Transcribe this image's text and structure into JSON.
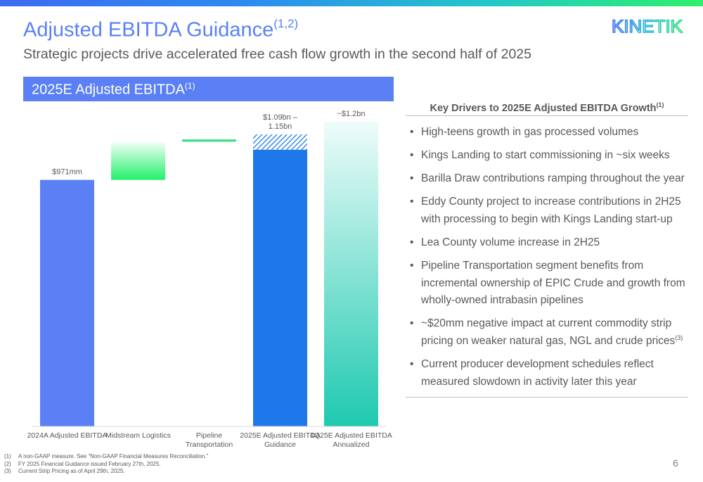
{
  "header": {
    "title": "Adjusted EBITDA Guidance",
    "title_sup": "(1,2)",
    "subtitle": "Strategic projects drive accelerated free cash flow growth in the second half of 2025",
    "logo_text": "KINETIK"
  },
  "section": {
    "label": "2025E Adjusted EBITDA",
    "label_sup": "(1)"
  },
  "chart_data": {
    "type": "bar",
    "subtype": "waterfall",
    "unit": "$mm",
    "ylim": [
      0,
      1200
    ],
    "grid": false,
    "legend": "none",
    "categories": [
      "2024A Adjusted EBITDA",
      "Midstream Logistics",
      "Pipeline Transportation",
      "2025E Adjusted EBITDA Guidance",
      "4Q25E Adjusted EBITDA Annualized"
    ],
    "bars": [
      {
        "category": "2024A Adjusted EBITDA",
        "kind": "total",
        "base": 0,
        "value": 971,
        "label": "$971mm",
        "color": "#5b80f5"
      },
      {
        "category": "Midstream Logistics",
        "kind": "increment",
        "base": 971,
        "value": 1120,
        "label": "",
        "color_top": "#f2fff7",
        "color_bottom": "#22f06a"
      },
      {
        "category": "Pipeline Transportation",
        "kind": "increment",
        "base": 1120,
        "value": 1130,
        "label": "",
        "color": "#2ee07a"
      },
      {
        "category": "2025E Adjusted EBITDA Guidance",
        "kind": "range",
        "base": 0,
        "value": 1090,
        "high": 1150,
        "label": "$1.09bn – 1.15bn",
        "color": "#1e78ea"
      },
      {
        "category": "4Q25E Adjusted EBITDA Annualized",
        "kind": "total",
        "base": 0,
        "value": 1200,
        "label": "~$1.2bn",
        "color_top": "#eefcfa",
        "color_bottom": "#1ec9b0"
      }
    ]
  },
  "drivers": {
    "title": "Key Drivers to 2025E Adjusted EBITDA Growth",
    "title_sup": "(1)",
    "items": [
      {
        "text": "High-teens growth in gas processed volumes",
        "sup": ""
      },
      {
        "text": "Kings Landing to start commissioning in ~six weeks",
        "sup": ""
      },
      {
        "text": "Barilla Draw contributions ramping throughout the year",
        "sup": ""
      },
      {
        "text": "Eddy County project to increase contributions in 2H25 with processing to begin with Kings Landing start-up",
        "sup": ""
      },
      {
        "text": "Lea County volume increase in 2H25",
        "sup": ""
      },
      {
        "text": "Pipeline Transportation segment benefits from incremental ownership of EPIC Crude and growth from wholly-owned intrabasin pipelines",
        "sup": ""
      },
      {
        "text": "~$20mm negative impact at current commodity strip pricing on weaker natural gas, NGL and crude prices",
        "sup": "(3)"
      },
      {
        "text": "Current producer development schedules reflect measured slowdown in activity later this year",
        "sup": ""
      }
    ]
  },
  "footnotes": [
    {
      "num": "(1)",
      "text": "A non-GAAP measure. See “Non-GAAP Financial Measures Reconciliation.”"
    },
    {
      "num": "(2)",
      "text": "FY 2025 Financial Guidance issued February 27th, 2025."
    },
    {
      "num": "(3)",
      "text": "Current Strip Pricing as of April 29th, 2025."
    }
  ],
  "page_number": "6",
  "colors": {
    "brand_blue": "#5b80f5",
    "dark_blue": "#1e78ea",
    "green": "#22f06a",
    "teal": "#1ec9b0",
    "text_gray": "#595959"
  }
}
